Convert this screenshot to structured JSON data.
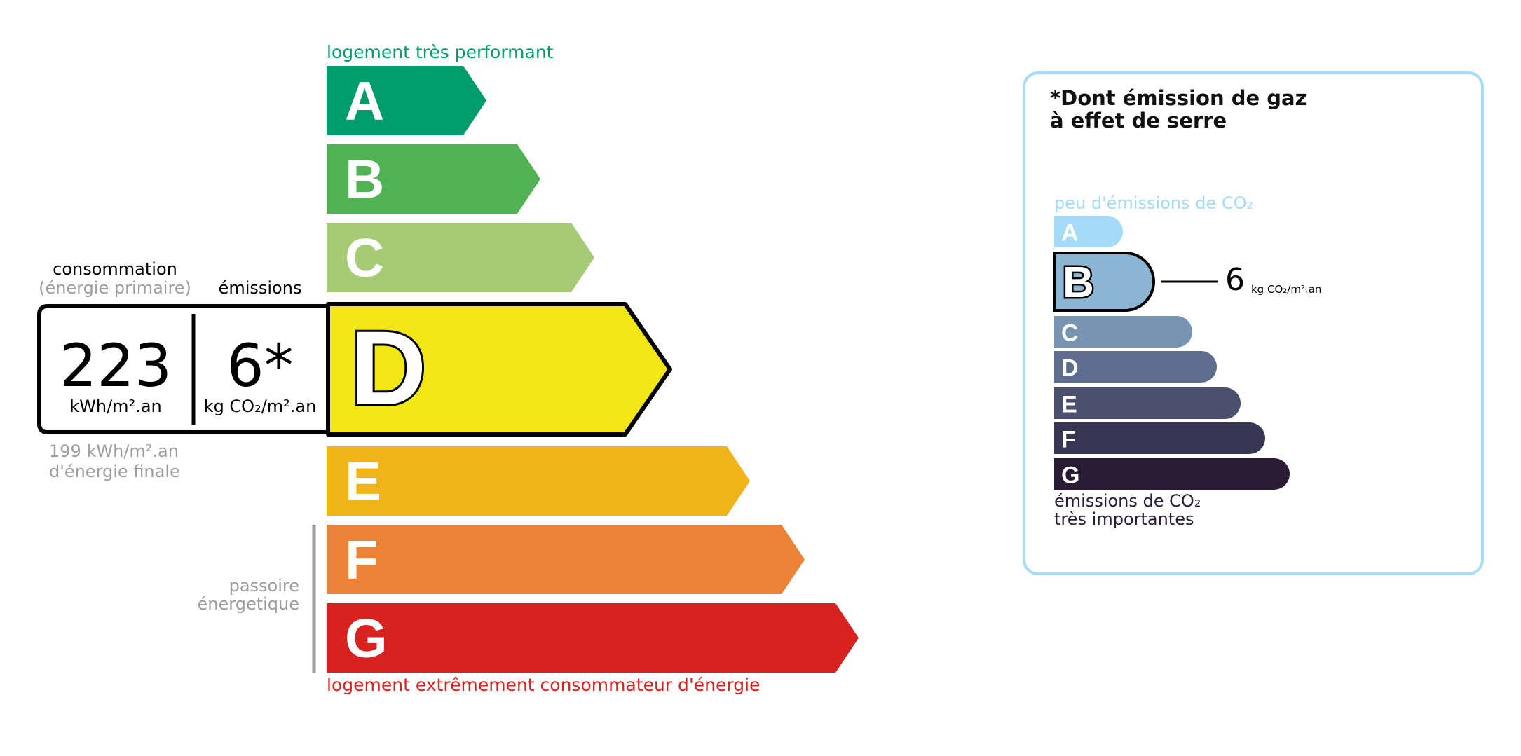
{
  "energy": {
    "top_label": "logement très performant",
    "bottom_label": "logement extrêmement consommateur d'énergie",
    "classes": [
      {
        "letter": "A",
        "color": "#009c6d"
      },
      {
        "letter": "B",
        "color": "#52b153"
      },
      {
        "letter": "C",
        "color": "#a5cc74"
      },
      {
        "letter": "D",
        "color": "#f2e617"
      },
      {
        "letter": "E",
        "color": "#f0b418"
      },
      {
        "letter": "F",
        "color": "#eb8235"
      },
      {
        "letter": "G",
        "color": "#d7221f"
      }
    ],
    "current_class": "D",
    "consumption_label": "consommation",
    "consumption_sublabel": "(énergie primaire)",
    "emissions_label": "émissions",
    "consumption_value": "223",
    "consumption_unit": "kWh/m².an",
    "emissions_value": "6*",
    "emissions_unit": "kg CO₂/m².an",
    "final_energy_line1": "199 kWh/m².an",
    "final_energy_line2": "d'énergie finale",
    "passoire_line1": "passoire",
    "passoire_line2": "énergetique"
  },
  "ges": {
    "title_line1": "*Dont émission de gaz",
    "title_line2": "à effet de serre",
    "top_label": "peu d'émissions de CO₂",
    "bottom_line1": "émissions de CO₂",
    "bottom_line2": "très importantes",
    "classes": [
      {
        "letter": "A",
        "color": "#a4dbf8"
      },
      {
        "letter": "B",
        "color": "#8cb4d3"
      },
      {
        "letter": "C",
        "color": "#7794b1"
      },
      {
        "letter": "D",
        "color": "#5e6d8e"
      },
      {
        "letter": "E",
        "color": "#4b5070"
      },
      {
        "letter": "F",
        "color": "#373551"
      },
      {
        "letter": "G",
        "color": "#2a1c35"
      }
    ],
    "current_class": "B",
    "value": "6",
    "unit": "kg CO₂/m².an"
  }
}
